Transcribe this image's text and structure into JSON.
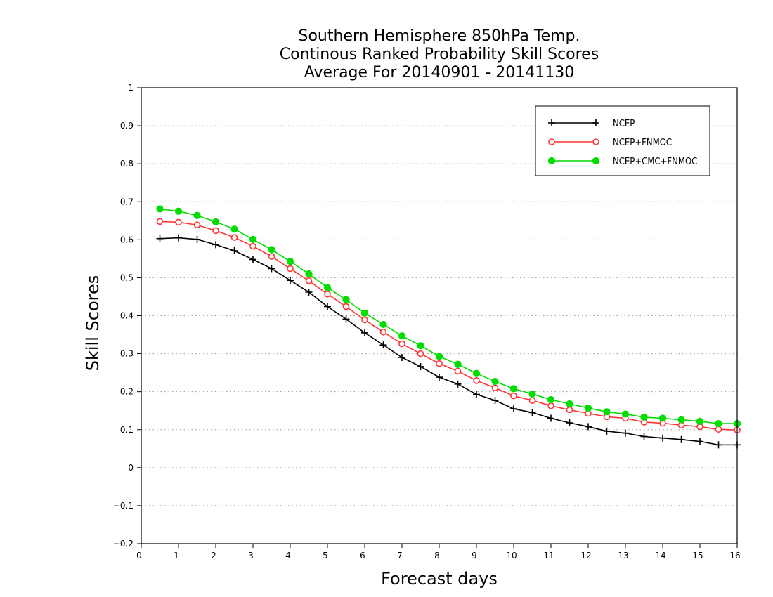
{
  "chart_data": {
    "type": "line",
    "title": [
      "Southern Hemisphere 850hPa Temp.",
      "Continous Ranked Probability Skill Scores",
      "Average For 20140901 - 20141130"
    ],
    "xlabel": "Forecast days",
    "ylabel": "Skill Scores",
    "xlim": [
      0,
      16
    ],
    "ylim": [
      -0.2,
      1
    ],
    "xticks": [
      "0",
      "1",
      "2",
      "3",
      "4",
      "5",
      "6",
      "7",
      "8",
      "9",
      "10",
      "11",
      "12",
      "13",
      "14",
      "15",
      "16"
    ],
    "yticks": [
      "−0.2",
      "−0.1",
      "0",
      "0.1",
      "0.2",
      "0.3",
      "0.4",
      "0.5",
      "0.6",
      "0.7",
      "0.8",
      "0.9",
      "1"
    ],
    "grid": "horizontal-dotted",
    "legend_position": "top-right",
    "x": [
      0.5,
      1,
      1.5,
      2,
      2.5,
      3,
      3.5,
      4,
      4.5,
      5,
      5.5,
      6,
      6.5,
      7,
      7.5,
      8,
      8.5,
      9,
      9.5,
      10,
      10.5,
      11,
      11.5,
      12,
      12.5,
      13,
      13.5,
      14,
      14.5,
      15,
      15.5,
      16
    ],
    "series": [
      {
        "name": "NCEP",
        "color": "#000000",
        "marker": "plus",
        "values": [
          0.603,
          0.605,
          0.601,
          0.587,
          0.571,
          0.548,
          0.524,
          0.493,
          0.462,
          0.424,
          0.391,
          0.355,
          0.323,
          0.29,
          0.266,
          0.238,
          0.22,
          0.193,
          0.177,
          0.155,
          0.145,
          0.13,
          0.118,
          0.108,
          0.096,
          0.091,
          0.082,
          0.078,
          0.074,
          0.069,
          0.06,
          0.06
        ]
      },
      {
        "name": "NCEP+FNMOC",
        "color": "#ff3333",
        "marker": "open-circle",
        "values": [
          0.648,
          0.646,
          0.639,
          0.624,
          0.606,
          0.583,
          0.556,
          0.524,
          0.492,
          0.457,
          0.424,
          0.389,
          0.357,
          0.326,
          0.3,
          0.274,
          0.254,
          0.229,
          0.21,
          0.189,
          0.177,
          0.163,
          0.152,
          0.143,
          0.134,
          0.13,
          0.12,
          0.117,
          0.112,
          0.108,
          0.101,
          0.099
        ]
      },
      {
        "name": "NCEP+CMC+FNMOC",
        "color": "#00dd00",
        "marker": "filled-circle",
        "values": [
          0.681,
          0.675,
          0.664,
          0.647,
          0.628,
          0.601,
          0.574,
          0.543,
          0.51,
          0.474,
          0.442,
          0.407,
          0.377,
          0.347,
          0.321,
          0.293,
          0.272,
          0.248,
          0.227,
          0.208,
          0.194,
          0.179,
          0.168,
          0.157,
          0.147,
          0.141,
          0.133,
          0.13,
          0.126,
          0.122,
          0.116,
          0.116
        ]
      }
    ]
  }
}
